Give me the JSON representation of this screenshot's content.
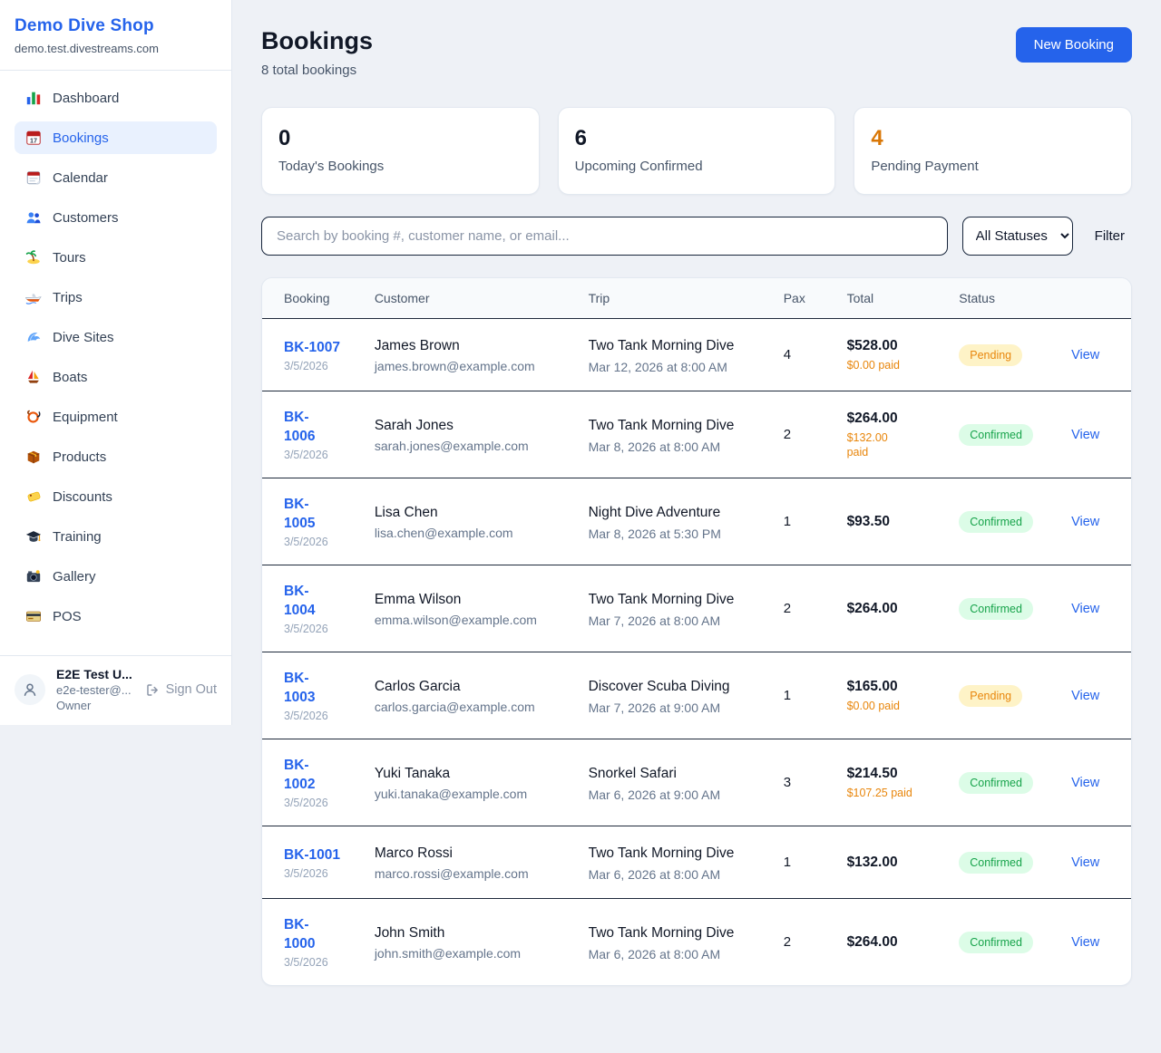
{
  "colors": {
    "accent": "#2563eb",
    "pending_text": "#e8860c",
    "pending_bg": "#fef3c7",
    "confirmed_text": "#16a34a",
    "confirmed_bg": "#dcfce7"
  },
  "sidebar": {
    "title": "Demo Dive Shop",
    "domain": "demo.test.divestreams.com",
    "items": [
      {
        "icon": "bar-chart-icon",
        "label": "Dashboard",
        "active": false
      },
      {
        "icon": "calendar-date-icon",
        "label": "Bookings",
        "active": true
      },
      {
        "icon": "calendar-icon",
        "label": "Calendar",
        "active": false
      },
      {
        "icon": "people-icon",
        "label": "Customers",
        "active": false
      },
      {
        "icon": "island-icon",
        "label": "Tours",
        "active": false
      },
      {
        "icon": "speedboat-icon",
        "label": "Trips",
        "active": false
      },
      {
        "icon": "wave-icon",
        "label": "Dive Sites",
        "active": false
      },
      {
        "icon": "sailboat-icon",
        "label": "Boats",
        "active": false
      },
      {
        "icon": "dive-mask-icon",
        "label": "Equipment",
        "active": false
      },
      {
        "icon": "package-icon",
        "label": "Products",
        "active": false
      },
      {
        "icon": "tag-icon",
        "label": "Discounts",
        "active": false
      },
      {
        "icon": "graduation-cap-icon",
        "label": "Training",
        "active": false
      },
      {
        "icon": "camera-icon",
        "label": "Gallery",
        "active": false
      },
      {
        "icon": "credit-card-icon",
        "label": "POS",
        "active": false
      }
    ],
    "user": {
      "name": "E2E Test U...",
      "email": "e2e-tester@...",
      "role": "Owner",
      "sign_out_label": "Sign Out"
    }
  },
  "header": {
    "title": "Bookings",
    "subtitle": "8 total bookings",
    "new_booking_label": "New Booking"
  },
  "stats": [
    {
      "value": "0",
      "label": "Today's Bookings",
      "orange": false
    },
    {
      "value": "6",
      "label": "Upcoming Confirmed",
      "orange": false
    },
    {
      "value": "4",
      "label": "Pending Payment",
      "orange": true
    }
  ],
  "controls": {
    "search_placeholder": "Search by booking #, customer name, or email...",
    "status_filter_value": "All Statuses",
    "filter_label": "Filter"
  },
  "table": {
    "columns": [
      "Booking",
      "Customer",
      "Trip",
      "Pax",
      "Total",
      "Status",
      ""
    ],
    "rows": [
      {
        "id": "BK-1007",
        "id_wrap": false,
        "date": "3/5/2026",
        "name": "James Brown",
        "email": "james.brown@example.com",
        "trip": "Two Tank Morning Dive",
        "trip_date": "Mar 12, 2026 at 8:00 AM",
        "pax": "4",
        "total": "$528.00",
        "paid": "$0.00 paid",
        "paid_wrap": false,
        "status": "Pending",
        "view": "View"
      },
      {
        "id": "BK-1006",
        "id_wrap": true,
        "date": "3/5/2026",
        "name": "Sarah Jones",
        "email": "sarah.jones@example.com",
        "trip": "Two Tank Morning Dive",
        "trip_date": "Mar 8, 2026 at 8:00 AM",
        "pax": "2",
        "total": "$264.00",
        "paid": "$132.00 paid",
        "paid_wrap": true,
        "status": "Confirmed",
        "view": "View"
      },
      {
        "id": "BK-1005",
        "id_wrap": true,
        "date": "3/5/2026",
        "name": "Lisa Chen",
        "email": "lisa.chen@example.com",
        "trip": "Night Dive Adventure",
        "trip_date": "Mar 8, 2026 at 5:30 PM",
        "pax": "1",
        "total": "$93.50",
        "paid": "",
        "paid_wrap": false,
        "status": "Confirmed",
        "view": "View"
      },
      {
        "id": "BK-1004",
        "id_wrap": true,
        "date": "3/5/2026",
        "name": "Emma Wilson",
        "email": "emma.wilson@example.com",
        "trip": "Two Tank Morning Dive",
        "trip_date": "Mar 7, 2026 at 8:00 AM",
        "pax": "2",
        "total": "$264.00",
        "paid": "",
        "paid_wrap": false,
        "status": "Confirmed",
        "view": "View"
      },
      {
        "id": "BK-1003",
        "id_wrap": true,
        "date": "3/5/2026",
        "name": "Carlos Garcia",
        "email": "carlos.garcia@example.com",
        "trip": "Discover Scuba Diving",
        "trip_date": "Mar 7, 2026 at 9:00 AM",
        "pax": "1",
        "total": "$165.00",
        "paid": "$0.00 paid",
        "paid_wrap": false,
        "status": "Pending",
        "view": "View"
      },
      {
        "id": "BK-1002",
        "id_wrap": true,
        "date": "3/5/2026",
        "name": "Yuki Tanaka",
        "email": "yuki.tanaka@example.com",
        "trip": "Snorkel Safari",
        "trip_date": "Mar 6, 2026 at 9:00 AM",
        "pax": "3",
        "total": "$214.50",
        "paid": "$107.25 paid",
        "paid_wrap": false,
        "status": "Confirmed",
        "view": "View"
      },
      {
        "id": "BK-1001",
        "id_wrap": false,
        "date": "3/5/2026",
        "name": "Marco Rossi",
        "email": "marco.rossi@example.com",
        "trip": "Two Tank Morning Dive",
        "trip_date": "Mar 6, 2026 at 8:00 AM",
        "pax": "1",
        "total": "$132.00",
        "paid": "",
        "paid_wrap": false,
        "status": "Confirmed",
        "view": "View"
      },
      {
        "id": "BK-1000",
        "id_wrap": true,
        "date": "3/5/2026",
        "name": "John Smith",
        "email": "john.smith@example.com",
        "trip": "Two Tank Morning Dive",
        "trip_date": "Mar 6, 2026 at 8:00 AM",
        "pax": "2",
        "total": "$264.00",
        "paid": "",
        "paid_wrap": false,
        "status": "Confirmed",
        "view": "View"
      }
    ]
  }
}
